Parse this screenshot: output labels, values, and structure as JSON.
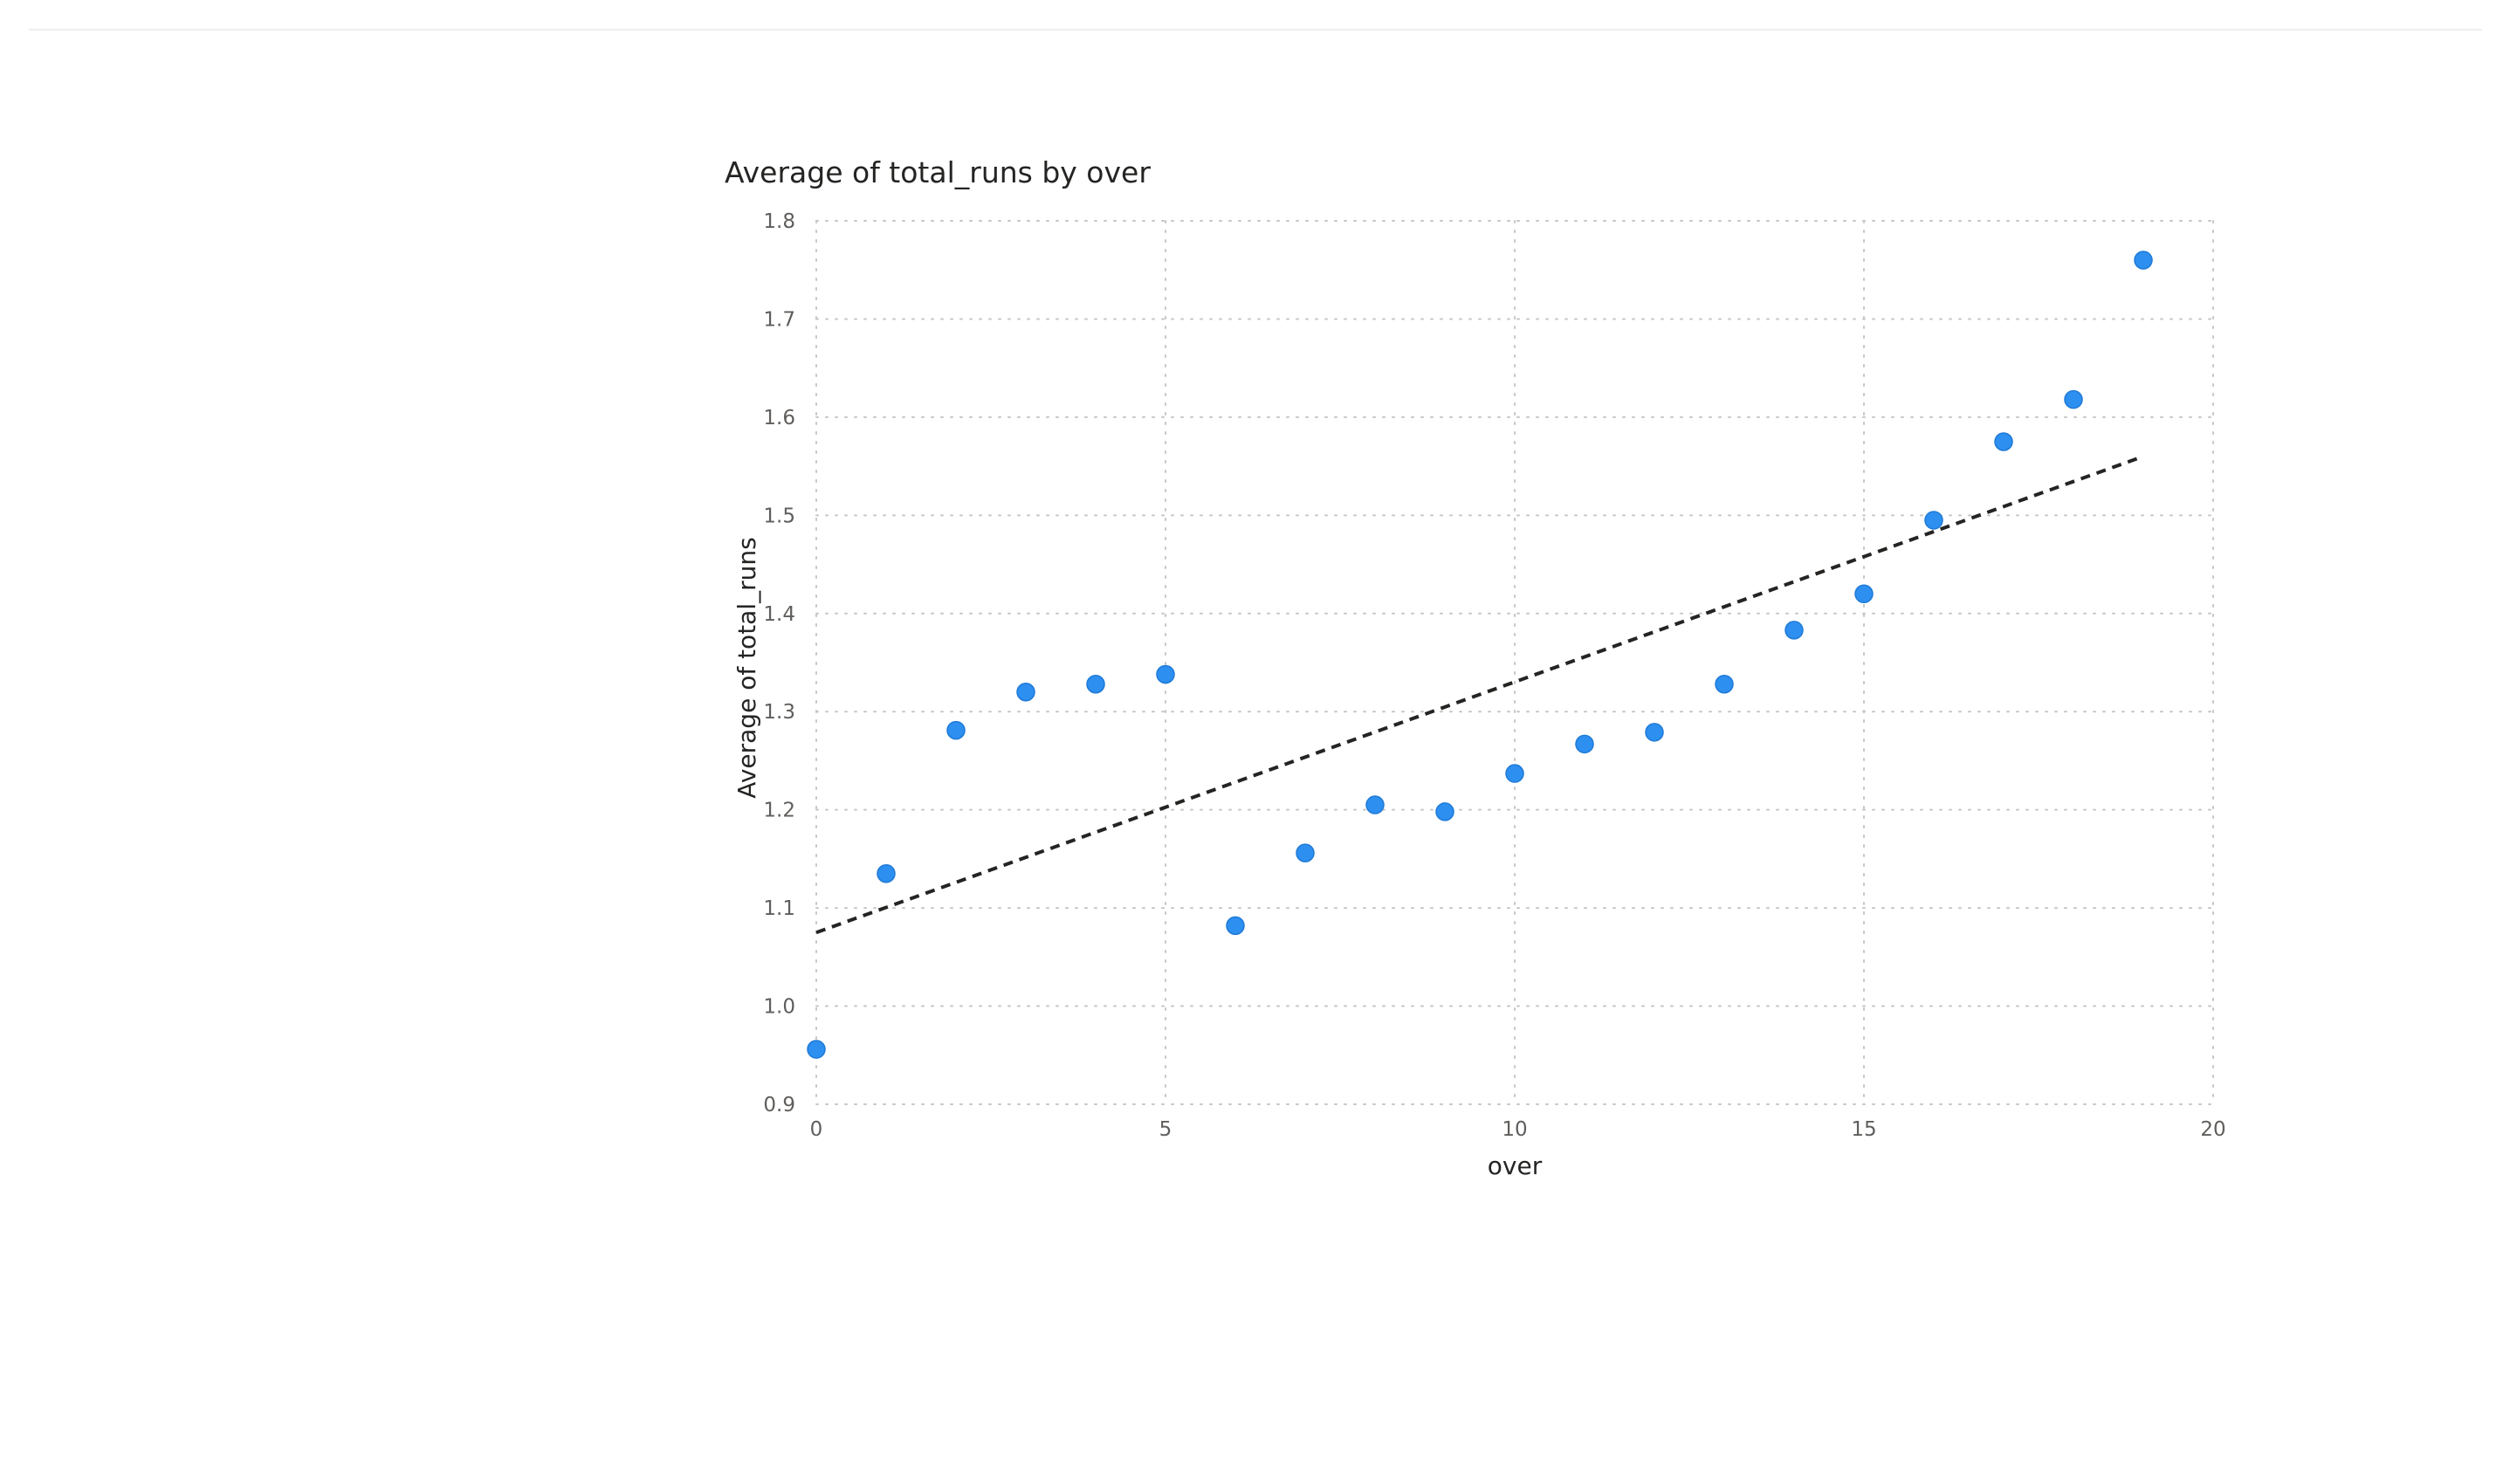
{
  "chart_data": {
    "type": "scatter",
    "title": "Average of total_runs by over",
    "xlabel": "over",
    "ylabel": "Average of total_runs",
    "xlim": [
      0,
      20
    ],
    "ylim": [
      0.9,
      1.8
    ],
    "xticks": [
      "0",
      "5",
      "10",
      "15",
      "20"
    ],
    "yticks": [
      "0.9",
      "1.0",
      "1.1",
      "1.2",
      "1.3",
      "1.4",
      "1.5",
      "1.6",
      "1.7",
      "1.8"
    ],
    "grid": true,
    "series": [
      {
        "x": [
          0,
          1,
          2,
          3,
          4,
          5,
          6,
          7,
          8,
          9,
          10,
          11,
          12,
          13,
          14,
          15,
          16,
          17,
          18,
          19
        ],
        "y": [
          0.956,
          1.135,
          1.281,
          1.32,
          1.328,
          1.338,
          1.082,
          1.156,
          1.205,
          1.198,
          1.237,
          1.267,
          1.279,
          1.328,
          1.383,
          1.42,
          1.495,
          1.575,
          1.618,
          1.76
        ],
        "color": "#2d8ff0"
      }
    ],
    "trend_line": {
      "x": [
        0,
        19
      ],
      "y": [
        1.075,
        1.56
      ],
      "style": "dashed",
      "color": "#252423"
    }
  }
}
